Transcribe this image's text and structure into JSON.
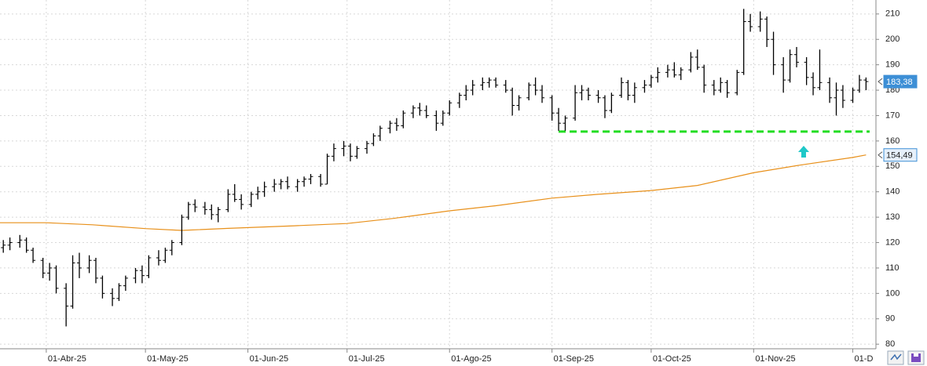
{
  "chart_data": {
    "type": "ohlc",
    "color": "#000000",
    "x": [
      "2025-03-19",
      "2025-03-21",
      "2025-03-24",
      "2025-03-26",
      "2025-03-28",
      "2025-03-31",
      "2025-04-02",
      "2025-04-04",
      "2025-04-07",
      "2025-04-09",
      "2025-04-11",
      "2025-04-14",
      "2025-04-16",
      "2025-04-18",
      "2025-04-21",
      "2025-04-23",
      "2025-04-25",
      "2025-04-28",
      "2025-04-30",
      "2025-05-02",
      "2025-05-05",
      "2025-05-07",
      "2025-05-09",
      "2025-05-12",
      "2025-05-14",
      "2025-05-16",
      "2025-05-19",
      "2025-05-21",
      "2025-05-23",
      "2025-05-26",
      "2025-05-28",
      "2025-05-30",
      "2025-06-02",
      "2025-06-04",
      "2025-06-06",
      "2025-06-09",
      "2025-06-11",
      "2025-06-13",
      "2025-06-16",
      "2025-06-18",
      "2025-06-20",
      "2025-06-23",
      "2025-06-25",
      "2025-06-27",
      "2025-06-30",
      "2025-07-02",
      "2025-07-04",
      "2025-07-07",
      "2025-07-09",
      "2025-07-11",
      "2025-07-14",
      "2025-07-16",
      "2025-07-18",
      "2025-07-21",
      "2025-07-23",
      "2025-07-25",
      "2025-07-28",
      "2025-07-30",
      "2025-08-01",
      "2025-08-04",
      "2025-08-06",
      "2025-08-08",
      "2025-08-11",
      "2025-08-13",
      "2025-08-15",
      "2025-08-18",
      "2025-08-20",
      "2025-08-22",
      "2025-08-25",
      "2025-08-27",
      "2025-08-29",
      "2025-09-01",
      "2025-09-03",
      "2025-09-05",
      "2025-09-08",
      "2025-09-10",
      "2025-09-12",
      "2025-09-15",
      "2025-09-17",
      "2025-09-19",
      "2025-09-22",
      "2025-09-24",
      "2025-09-26",
      "2025-09-29",
      "2025-10-01",
      "2025-10-03",
      "2025-10-06",
      "2025-10-08",
      "2025-10-10",
      "2025-10-13",
      "2025-10-15",
      "2025-10-17",
      "2025-10-20",
      "2025-10-22",
      "2025-10-24",
      "2025-10-27",
      "2025-10-29",
      "2025-10-31",
      "2025-11-03",
      "2025-11-05",
      "2025-11-07",
      "2025-11-10",
      "2025-11-12",
      "2025-11-14",
      "2025-11-17",
      "2025-11-19",
      "2025-11-21",
      "2025-11-24",
      "2025-11-26",
      "2025-11-28",
      "2025-12-01",
      "2025-12-03",
      "2025-12-05"
    ],
    "open": [
      118,
      119,
      120,
      121,
      117,
      113,
      108,
      110,
      102,
      95,
      112,
      110,
      113,
      106,
      100,
      98,
      103,
      106,
      109,
      107,
      114,
      113,
      117,
      120,
      130,
      135,
      134,
      133,
      131,
      133,
      139,
      137,
      135,
      139,
      140,
      142,
      143,
      144,
      142,
      144,
      145,
      146,
      143,
      154,
      157,
      158,
      154,
      157,
      159,
      162,
      165,
      167,
      166,
      171,
      173,
      172,
      170,
      167,
      171,
      175,
      178,
      180,
      182,
      183,
      184,
      182,
      180,
      174,
      177,
      182,
      180,
      177,
      171,
      167,
      169,
      179,
      180,
      178,
      177,
      172,
      178,
      183,
      178,
      181,
      182,
      185,
      187,
      188,
      186,
      188,
      193,
      189,
      182,
      180,
      183,
      179,
      187,
      207,
      205,
      208,
      200,
      190,
      184,
      194,
      191,
      185,
      181,
      183,
      177,
      180,
      176,
      180,
      184
    ],
    "high": [
      121,
      122,
      123,
      122,
      118,
      114,
      112,
      111,
      104,
      115,
      116,
      115,
      114,
      107,
      102,
      104,
      107,
      110,
      111,
      115,
      117,
      118,
      121,
      131,
      136,
      137,
      136,
      135,
      134,
      141,
      143,
      139,
      140,
      142,
      144,
      145,
      145,
      146,
      145,
      146,
      147,
      147,
      155,
      159,
      160,
      159,
      158,
      160,
      163,
      166,
      168,
      169,
      172,
      174,
      175,
      174,
      172,
      172,
      176,
      179,
      182,
      184,
      185,
      185,
      185,
      184,
      181,
      178,
      183,
      185,
      182,
      178,
      173,
      170,
      182,
      182,
      181,
      180,
      178,
      179,
      185,
      184,
      183,
      184,
      186,
      189,
      190,
      191,
      189,
      195,
      196,
      190,
      184,
      185,
      184,
      188,
      212,
      210,
      211,
      209,
      203,
      193,
      196,
      197,
      193,
      187,
      196,
      185,
      183,
      182,
      181,
      186,
      185
    ],
    "low": [
      116,
      117,
      118,
      116,
      112,
      106,
      105,
      100,
      87,
      94,
      106,
      108,
      104,
      98,
      95,
      97,
      101,
      104,
      104,
      106,
      111,
      112,
      115,
      119,
      129,
      132,
      131,
      129,
      128,
      132,
      136,
      133,
      134,
      137,
      138,
      140,
      141,
      141,
      140,
      142,
      143,
      142,
      143,
      152,
      154,
      152,
      153,
      155,
      158,
      160,
      163,
      164,
      165,
      169,
      170,
      169,
      164,
      166,
      170,
      173,
      176,
      178,
      180,
      181,
      181,
      179,
      170,
      172,
      176,
      178,
      175,
      168,
      164,
      164,
      168,
      176,
      176,
      175,
      169,
      171,
      177,
      176,
      175,
      179,
      181,
      183,
      185,
      185,
      184,
      187,
      188,
      179,
      178,
      179,
      177,
      178,
      186,
      203,
      203,
      197,
      186,
      179,
      183,
      189,
      182,
      178,
      180,
      175,
      170,
      173,
      175,
      179,
      180
    ],
    "close": [
      119,
      120,
      121,
      117,
      113,
      108,
      110,
      102,
      95,
      112,
      110,
      113,
      106,
      100,
      98,
      103,
      106,
      109,
      107,
      114,
      113,
      117,
      120,
      130,
      135,
      134,
      133,
      131,
      133,
      139,
      137,
      135,
      139,
      140,
      142,
      143,
      144,
      142,
      144,
      145,
      146,
      143,
      154,
      157,
      158,
      154,
      157,
      159,
      162,
      165,
      167,
      166,
      171,
      173,
      172,
      170,
      167,
      171,
      175,
      178,
      180,
      182,
      183,
      184,
      182,
      180,
      174,
      177,
      182,
      180,
      177,
      171,
      167,
      169,
      179,
      180,
      178,
      177,
      172,
      178,
      183,
      178,
      181,
      182,
      185,
      187,
      188,
      186,
      188,
      193,
      189,
      182,
      180,
      183,
      179,
      187,
      207,
      205,
      208,
      200,
      190,
      184,
      194,
      191,
      185,
      181,
      183,
      177,
      180,
      176,
      180,
      184,
      183.38
    ],
    "xlim": [
      "2025-03-18",
      "2025-12-08"
    ],
    "xticks": [
      {
        "value": "2025-04-01",
        "label": "01-Abr-25"
      },
      {
        "value": "2025-05-01",
        "label": "01-May-25"
      },
      {
        "value": "2025-06-01",
        "label": "01-Jun-25"
      },
      {
        "value": "2025-07-01",
        "label": "01-Jul-25"
      },
      {
        "value": "2025-08-01",
        "label": "01-Ago-25"
      },
      {
        "value": "2025-09-01",
        "label": "01-Sep-25"
      },
      {
        "value": "2025-10-01",
        "label": "01-Oct-25"
      },
      {
        "value": "2025-11-01",
        "label": "01-Nov-25"
      },
      {
        "value": "2025-12-01",
        "label": "01-D"
      }
    ],
    "ylim": [
      78.2,
      215.5
    ],
    "yticks": [
      80,
      90,
      100,
      110,
      120,
      130,
      140,
      150,
      160,
      170,
      180,
      190,
      200,
      210
    ],
    "grid": true,
    "moving_average": {
      "color": "#e8901a",
      "x": [
        "2025-03-18",
        "2025-04-01",
        "2025-04-15",
        "2025-05-01",
        "2025-05-12",
        "2025-05-26",
        "2025-06-15",
        "2025-07-01",
        "2025-07-15",
        "2025-08-01",
        "2025-08-15",
        "2025-09-01",
        "2025-09-15",
        "2025-10-01",
        "2025-10-15",
        "2025-11-01",
        "2025-11-15",
        "2025-12-01",
        "2025-12-05"
      ],
      "values": [
        127.8,
        127.8,
        127.0,
        125.5,
        124.8,
        125.6,
        126.6,
        127.5,
        129.5,
        132.5,
        134.5,
        137.5,
        139,
        140.5,
        142.5,
        147.5,
        150.5,
        153.5,
        154.49
      ]
    },
    "support": {
      "value": 163.7,
      "start": "2025-09-03",
      "color": "#22dd22"
    },
    "price_labels": [
      {
        "value": 183.38,
        "label": "183,38",
        "fill": "#3d8fd6",
        "text_color": "#ffffff"
      },
      {
        "value": 154.49,
        "label": "154,49",
        "fill": "#e6f0fa",
        "text_color": "#222222"
      }
    ]
  }
}
